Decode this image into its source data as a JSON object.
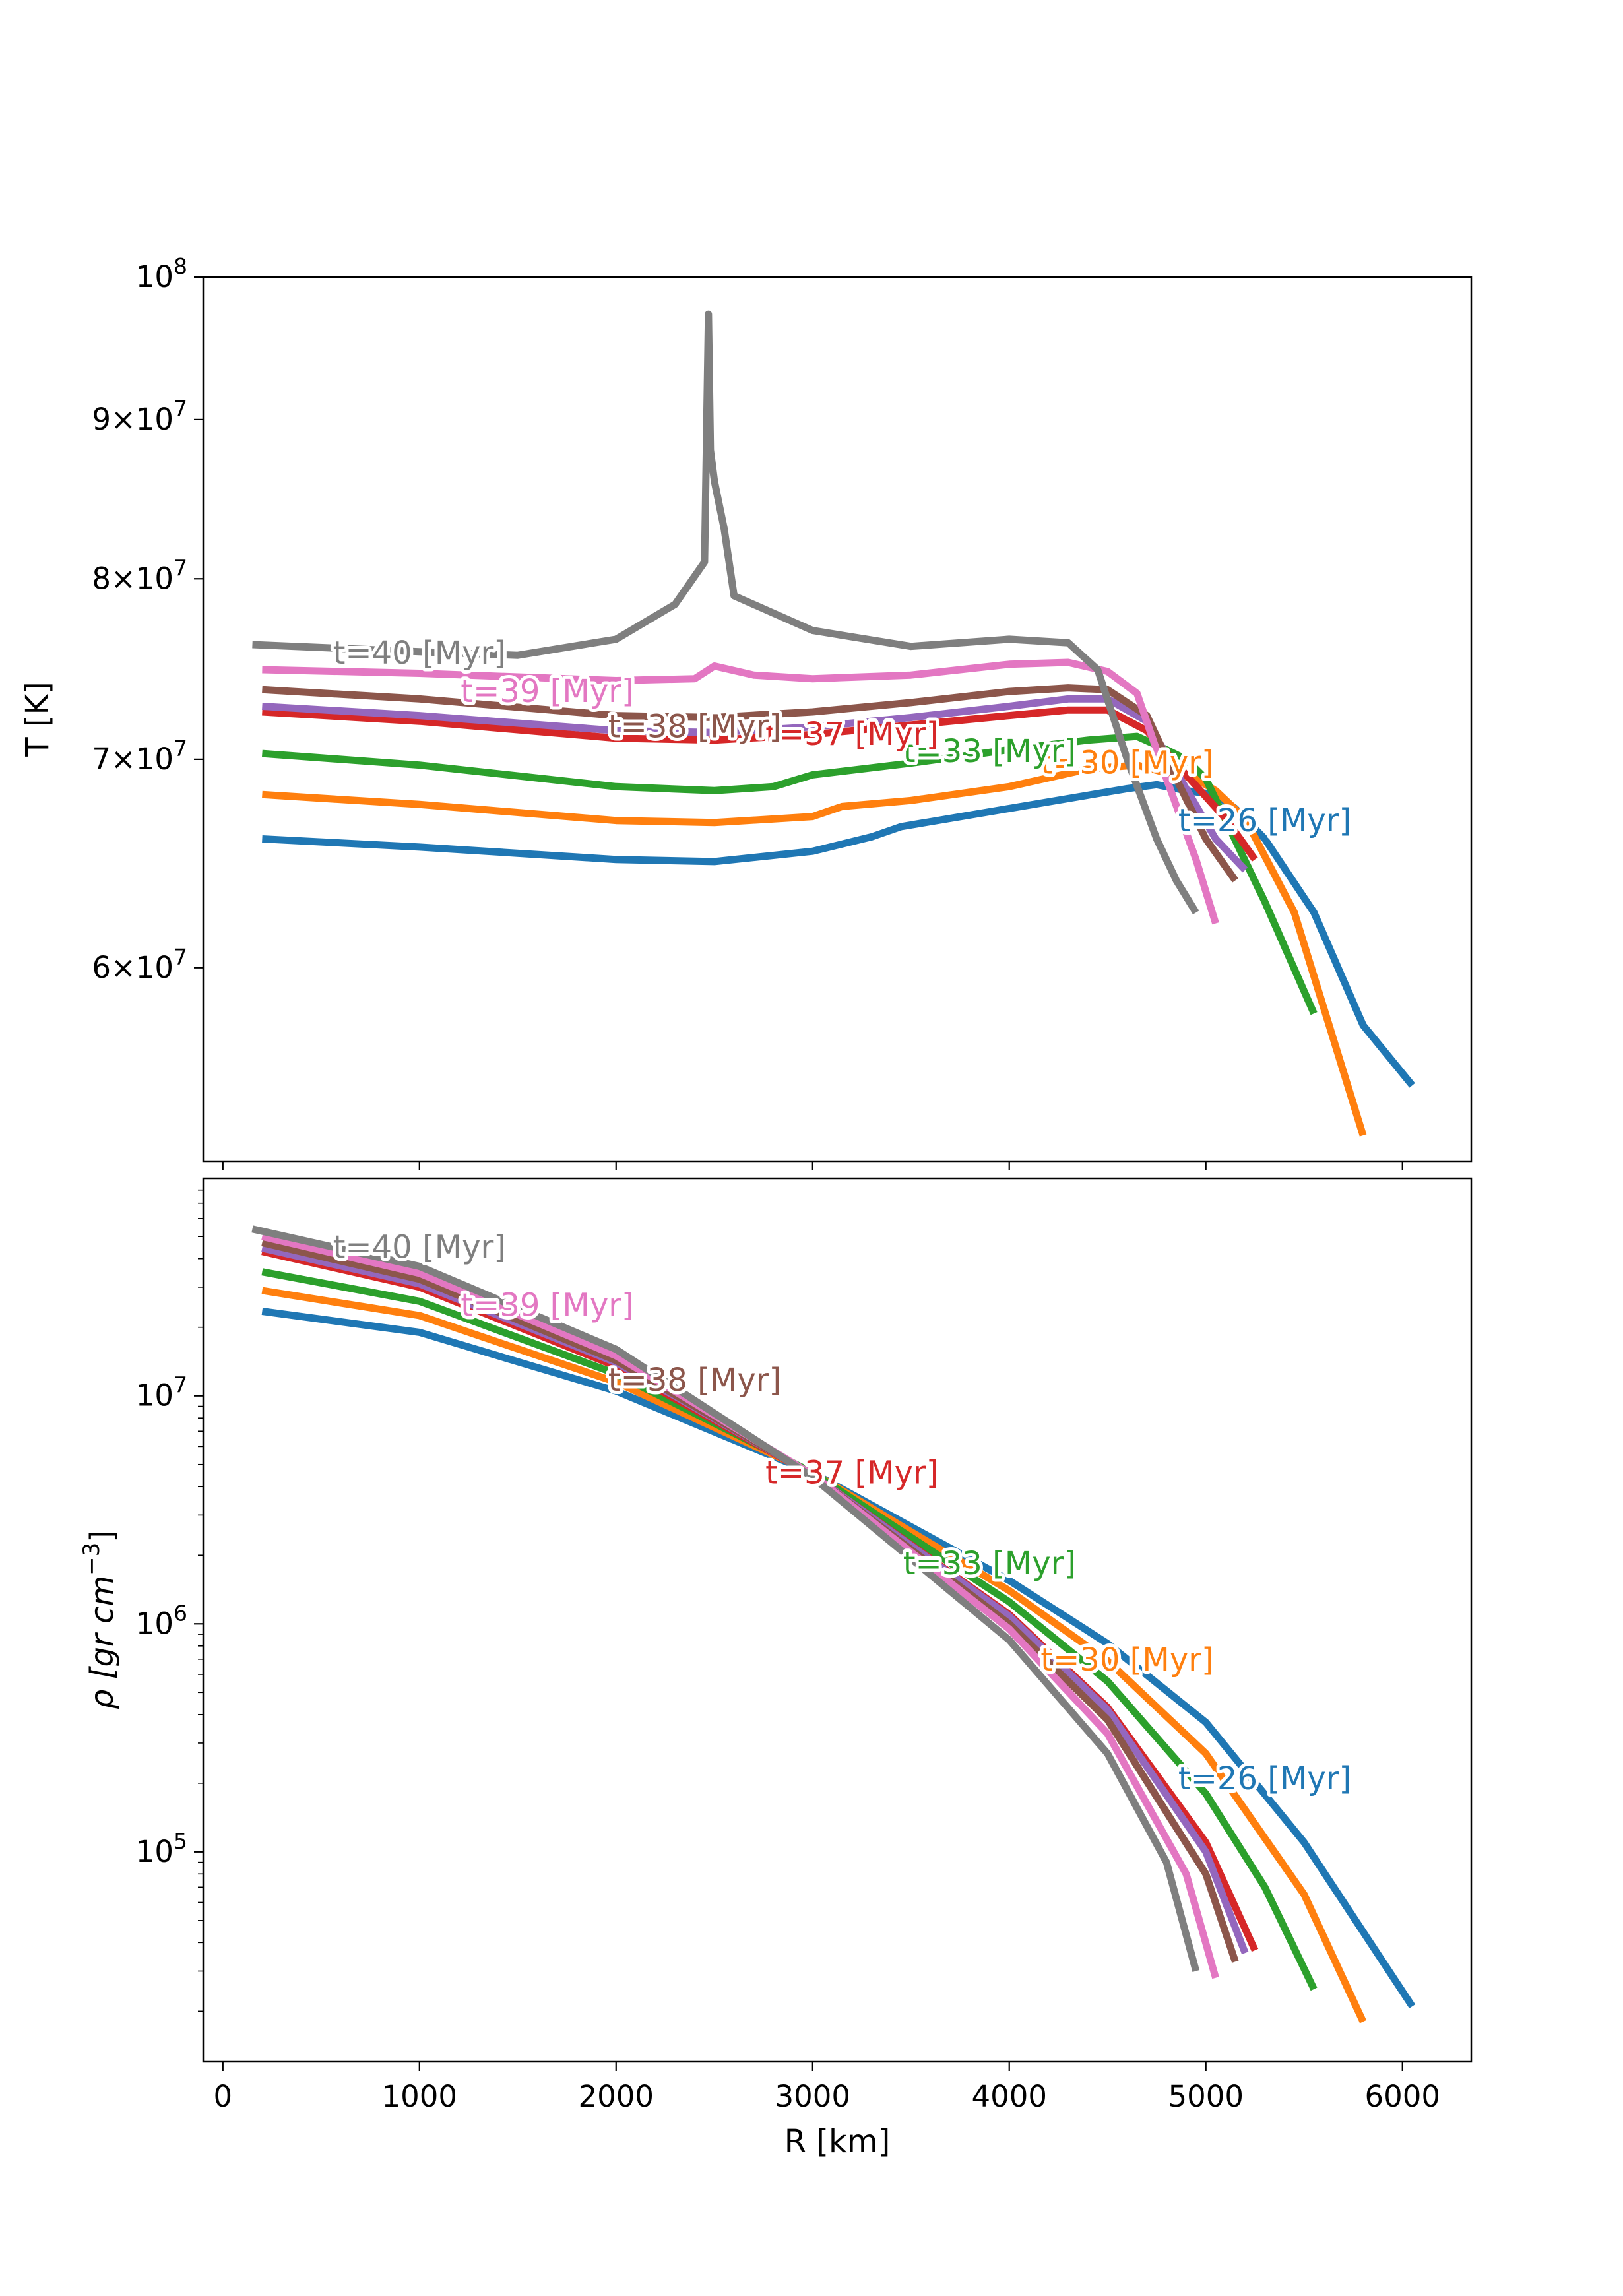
{
  "chart_data": [
    {
      "type": "line",
      "panel": "top",
      "ylabel": "T [K]",
      "xlabel": "",
      "yscale": "log",
      "xlim": [
        -100,
        6350
      ],
      "ylim": [
        52000000,
        100000000
      ],
      "yticks": [
        {
          "value": 60000000,
          "mant": "6",
          "exp": "7"
        },
        {
          "value": 70000000,
          "mant": "7",
          "exp": "7"
        },
        {
          "value": 80000000,
          "mant": "8",
          "exp": "7"
        },
        {
          "value": 90000000,
          "mant": "9",
          "exp": "7"
        },
        {
          "value": 100000000,
          "mant": "",
          "exp": "8"
        }
      ],
      "xticks": [
        0,
        1000,
        2000,
        3000,
        4000,
        5000,
        6000
      ],
      "show_xtick_labels": false,
      "series": [
        {
          "name": "t=26 [Myr]",
          "color": "#1f77b4",
          "label_at": [
            5300,
            66800000
          ],
          "x": [
            200,
            1000,
            2000,
            2500,
            3000,
            3300,
            3450,
            4000,
            4600,
            4750,
            4900,
            5050,
            5150,
            5300,
            5550,
            5800,
            6050
          ],
          "y": [
            66000000,
            65600000,
            65000000,
            64900000,
            65400000,
            66100000,
            66600000,
            67500000,
            68500000,
            68700000,
            68400000,
            68200000,
            67500000,
            66000000,
            62500000,
            57500000,
            55000000
          ]
        },
        {
          "name": "t=30 [Myr]",
          "color": "#ff7f0e",
          "label_at": [
            4600,
            69700000
          ],
          "x": [
            200,
            1000,
            2000,
            2500,
            3000,
            3150,
            3500,
            4000,
            4400,
            4650,
            4800,
            4950,
            5050,
            5200,
            5450,
            5800
          ],
          "y": [
            68200000,
            67700000,
            66900000,
            66800000,
            67100000,
            67600000,
            67900000,
            68600000,
            69500000,
            69700000,
            69300000,
            69000000,
            68400000,
            67000000,
            62500000,
            53000000
          ]
        },
        {
          "name": "t=33 [Myr]",
          "color": "#2ca02c",
          "label_at": [
            3900,
            70300000
          ],
          "x": [
            200,
            1000,
            2000,
            2500,
            2800,
            3000,
            3500,
            4000,
            4400,
            4650,
            4800,
            4900,
            5000,
            5300,
            5550
          ],
          "y": [
            70300000,
            69700000,
            68600000,
            68400000,
            68600000,
            69200000,
            69800000,
            70500000,
            71000000,
            71200000,
            70500000,
            70000000,
            69000000,
            63000000,
            58000000
          ]
        },
        {
          "name": "t=37 [Myr]",
          "color": "#d62728",
          "label_at": [
            3200,
            71200000
          ],
          "x": [
            200,
            1000,
            2000,
            2500,
            3000,
            3500,
            4000,
            4300,
            4500,
            4700,
            4900,
            5100,
            5250
          ],
          "y": [
            72500000,
            72000000,
            71100000,
            71000000,
            71300000,
            71800000,
            72300000,
            72600000,
            72600000,
            71500000,
            69200000,
            67000000,
            65000000
          ]
        },
        {
          "name": "purple",
          "color": "#9467bd",
          "label_at": null,
          "x": [
            200,
            1000,
            2000,
            2500,
            3000,
            3500,
            4000,
            4300,
            4500,
            4700,
            4900,
            5050,
            5200
          ],
          "y": [
            72800000,
            72300000,
            71500000,
            71400000,
            71700000,
            72200000,
            72800000,
            73200000,
            73200000,
            72000000,
            68500000,
            66000000,
            64500000
          ]
        },
        {
          "name": "t=38 [Myr]",
          "color": "#8c564b",
          "label_at": [
            2400,
            71600000
          ],
          "x": [
            200,
            1000,
            2000,
            2500,
            3000,
            3500,
            4000,
            4300,
            4500,
            4700,
            4850,
            5000,
            5150
          ],
          "y": [
            73700000,
            73200000,
            72300000,
            72200000,
            72500000,
            73000000,
            73600000,
            73800000,
            73700000,
            72300000,
            69000000,
            66000000,
            64000000
          ]
        },
        {
          "name": "t=39 [Myr]",
          "color": "#e377c2",
          "label_at": [
            1650,
            73500000
          ],
          "x": [
            200,
            1000,
            2000,
            2400,
            2500,
            2700,
            3000,
            3500,
            4000,
            4300,
            4500,
            4650,
            4800,
            4950,
            5050
          ],
          "y": [
            74800000,
            74600000,
            74200000,
            74300000,
            75000000,
            74500000,
            74300000,
            74500000,
            75100000,
            75200000,
            74700000,
            73500000,
            69000000,
            65000000,
            62000000
          ]
        },
        {
          "name": "t=40 [Myr]",
          "color": "#7f7f7f",
          "label_at": [
            1000,
            75600000
          ],
          "x": [
            150,
            1000,
            1500,
            2000,
            2300,
            2450,
            2470,
            2480,
            2500,
            2550,
            2600,
            3000,
            3500,
            4000,
            4300,
            4450,
            4600,
            4750,
            4850,
            4950
          ],
          "y": [
            76200000,
            75800000,
            75600000,
            76500000,
            78500000,
            81000000,
            97300000,
            88000000,
            86000000,
            83000000,
            79000000,
            77000000,
            76100000,
            76500000,
            76300000,
            74800000,
            70000000,
            66000000,
            64000000,
            62500000
          ]
        }
      ]
    },
    {
      "type": "line",
      "panel": "bottom",
      "ylabel": "ρ [gr cm",
      "ylabel_exp": "−3",
      "ylabel_close": "]",
      "xlabel": "R [km]",
      "yscale": "log",
      "xlim": [
        -100,
        6350
      ],
      "ylim": [
        12000,
        90000000
      ],
      "yticks": [
        {
          "value": 100000,
          "mant": "",
          "exp": "5"
        },
        {
          "value": 1000000,
          "mant": "",
          "exp": "6"
        },
        {
          "value": 10000000,
          "mant": "",
          "exp": "7"
        }
      ],
      "xticks": [
        0,
        1000,
        2000,
        3000,
        4000,
        5000,
        6000
      ],
      "show_xtick_labels": true,
      "series": [
        {
          "name": "t=26 [Myr]",
          "color": "#1f77b4",
          "label_at": [
            5300,
            205000
          ],
          "x": [
            200,
            1000,
            2000,
            3000,
            4000,
            4500,
            5000,
            5500,
            6050
          ],
          "y": [
            23500000,
            19000000,
            10500000,
            4600000,
            1550000,
            820000,
            370000,
            110000,
            21000
          ]
        },
        {
          "name": "t=30 [Myr]",
          "color": "#ff7f0e",
          "label_at": [
            4600,
            680000
          ],
          "x": [
            200,
            1000,
            2000,
            3000,
            4000,
            4500,
            5000,
            5500,
            5800
          ],
          "y": [
            29000000,
            22500000,
            11500000,
            4600000,
            1400000,
            690000,
            270000,
            65000,
            18000
          ]
        },
        {
          "name": "t=33 [Myr]",
          "color": "#2ca02c",
          "label_at": [
            3900,
            1800000
          ],
          "x": [
            200,
            1000,
            2000,
            3000,
            4000,
            4500,
            5000,
            5300,
            5550
          ],
          "y": [
            35000000,
            26000000,
            12500000,
            4600000,
            1250000,
            560000,
            180000,
            70000,
            25000
          ]
        },
        {
          "name": "t=37 [Myr]",
          "color": "#d62728",
          "label_at": [
            3200,
            4500000
          ],
          "x": [
            200,
            1000,
            2000,
            3000,
            4000,
            4500,
            5000,
            5250
          ],
          "y": [
            43000000,
            30000000,
            13500000,
            4500000,
            1100000,
            430000,
            110000,
            37000
          ]
        },
        {
          "name": "purple",
          "color": "#9467bd",
          "label_at": null,
          "x": [
            200,
            1000,
            2000,
            3000,
            4000,
            4500,
            5000,
            5200
          ],
          "y": [
            44500000,
            31000000,
            14000000,
            4500000,
            1080000,
            420000,
            100000,
            36000
          ]
        },
        {
          "name": "t=38 [Myr]",
          "color": "#8c564b",
          "label_at": [
            2400,
            11500000
          ],
          "x": [
            200,
            1000,
            2000,
            3000,
            4000,
            4500,
            5000,
            5150
          ],
          "y": [
            47000000,
            32500000,
            14300000,
            4500000,
            1000000,
            380000,
            80000,
            33000
          ]
        },
        {
          "name": "t=39 [Myr]",
          "color": "#e377c2",
          "label_at": [
            1650,
            24500000
          ],
          "x": [
            200,
            1000,
            2000,
            3000,
            4000,
            4500,
            4900,
            5050
          ],
          "y": [
            50000000,
            34500000,
            15000000,
            4500000,
            950000,
            330000,
            80000,
            28000
          ]
        },
        {
          "name": "t=40 [Myr]",
          "color": "#7f7f7f",
          "label_at": [
            1000,
            44000000
          ],
          "x": [
            150,
            1000,
            2000,
            3000,
            4000,
            4500,
            4800,
            4950
          ],
          "y": [
            54000000,
            37000000,
            16000000,
            4400000,
            850000,
            270000,
            90000,
            30000
          ]
        }
      ]
    }
  ]
}
